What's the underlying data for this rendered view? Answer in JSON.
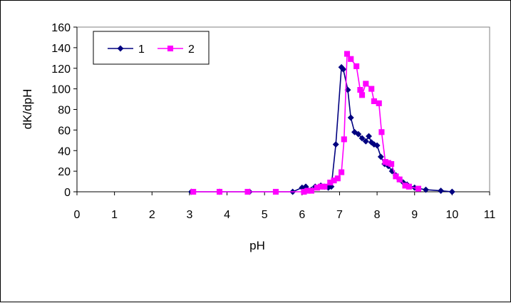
{
  "chart_data": {
    "type": "line",
    "title": "",
    "xlabel": "pH",
    "ylabel": "dK/dpH",
    "xlim": [
      0,
      11
    ],
    "ylim": [
      0,
      160
    ],
    "xticks": [
      0,
      1,
      2,
      3,
      4,
      5,
      6,
      7,
      8,
      9,
      10,
      11
    ],
    "yticks": [
      0,
      20,
      40,
      60,
      80,
      100,
      120,
      140,
      160
    ],
    "grid": false,
    "legend": "top-left",
    "series": [
      {
        "name": "1",
        "color": "#000080",
        "marker": "diamond",
        "points": [
          [
            3.05,
            0
          ],
          [
            3.8,
            0
          ],
          [
            4.6,
            0
          ],
          [
            5.75,
            0
          ],
          [
            6.0,
            4
          ],
          [
            6.1,
            5
          ],
          [
            6.25,
            2
          ],
          [
            6.35,
            5
          ],
          [
            6.5,
            6
          ],
          [
            6.6,
            5
          ],
          [
            6.7,
            4
          ],
          [
            6.78,
            5
          ],
          [
            6.9,
            46
          ],
          [
            7.05,
            121
          ],
          [
            7.1,
            119
          ],
          [
            7.22,
            99
          ],
          [
            7.3,
            72
          ],
          [
            7.4,
            58
          ],
          [
            7.5,
            56
          ],
          [
            7.6,
            52
          ],
          [
            7.7,
            49
          ],
          [
            7.78,
            54
          ],
          [
            7.85,
            48
          ],
          [
            7.92,
            46
          ],
          [
            8.0,
            45
          ],
          [
            8.1,
            34
          ],
          [
            8.2,
            27
          ],
          [
            8.3,
            25
          ],
          [
            8.4,
            20
          ],
          [
            8.5,
            16
          ],
          [
            8.6,
            12
          ],
          [
            8.7,
            9
          ],
          [
            8.8,
            7
          ],
          [
            9.0,
            4
          ],
          [
            9.3,
            2
          ],
          [
            9.7,
            1
          ],
          [
            10.0,
            0
          ]
        ]
      },
      {
        "name": "2",
        "color": "#FF00FF",
        "marker": "square",
        "points": [
          [
            3.1,
            0
          ],
          [
            3.8,
            0
          ],
          [
            4.55,
            0
          ],
          [
            5.3,
            0
          ],
          [
            6.05,
            0
          ],
          [
            6.15,
            1
          ],
          [
            6.25,
            1
          ],
          [
            6.4,
            4
          ],
          [
            6.5,
            5
          ],
          [
            6.6,
            5
          ],
          [
            6.75,
            9
          ],
          [
            6.85,
            11
          ],
          [
            6.95,
            13
          ],
          [
            7.05,
            19
          ],
          [
            7.12,
            51
          ],
          [
            7.2,
            134
          ],
          [
            7.3,
            129
          ],
          [
            7.45,
            122
          ],
          [
            7.55,
            99
          ],
          [
            7.6,
            94
          ],
          [
            7.7,
            105
          ],
          [
            7.85,
            100
          ],
          [
            7.92,
            88
          ],
          [
            8.05,
            86
          ],
          [
            8.12,
            58
          ],
          [
            8.22,
            29
          ],
          [
            8.3,
            28
          ],
          [
            8.38,
            27
          ],
          [
            8.5,
            15
          ],
          [
            8.6,
            12
          ],
          [
            8.75,
            6
          ],
          [
            8.85,
            5
          ],
          [
            9.1,
            3
          ]
        ]
      }
    ]
  }
}
